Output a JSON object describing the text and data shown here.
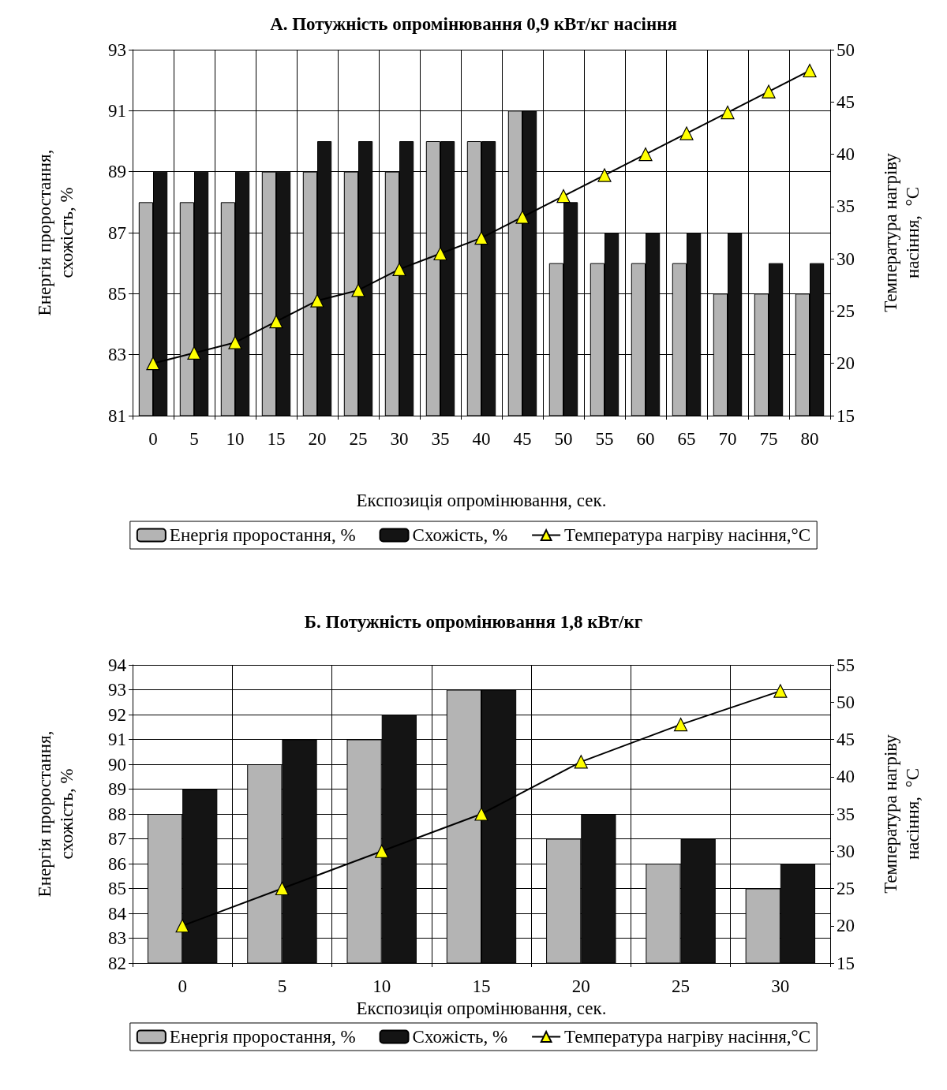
{
  "chart_data": [
    {
      "type": "bar",
      "title": "А. Потужність опромінювання 0,9 кВт/кг насіння",
      "xlabel": "Експозиція опромінювання, сек.",
      "ylabel": "Енергія проростання,\nсхожість, %",
      "y2label": "Температура нагріву\nнасіння,  °C",
      "categories": [
        "0",
        "5",
        "10",
        "15",
        "20",
        "25",
        "30",
        "35",
        "40",
        "45",
        "50",
        "55",
        "60",
        "65",
        "70",
        "75",
        "80"
      ],
      "series": [
        {
          "name": "Енергія проростання, %",
          "color": "#b4b4b4",
          "values": [
            88,
            88,
            88,
            89,
            89,
            89,
            89,
            90,
            90,
            91,
            86,
            86,
            86,
            86,
            85,
            85,
            85
          ]
        },
        {
          "name": "Схожість, %",
          "color": "#141414",
          "values": [
            89,
            89,
            89,
            89,
            90,
            90,
            90,
            90,
            90,
            91,
            88,
            87,
            87,
            87,
            87,
            86,
            86
          ]
        },
        {
          "name": "Температура нагріву насіння,°C",
          "type": "line",
          "axis": "y2",
          "color": "#000000",
          "marker": "triangle",
          "values": [
            20,
            21,
            22,
            24,
            26,
            27,
            29,
            30.5,
            32,
            34,
            36,
            38,
            40,
            42,
            44,
            46,
            48
          ]
        }
      ],
      "ylim": [
        81,
        93
      ],
      "yticks": [
        81,
        83,
        85,
        87,
        89,
        91,
        93
      ],
      "y2lim": [
        15,
        50
      ],
      "y2ticks": [
        15,
        20,
        25,
        30,
        35,
        40,
        45,
        50
      ],
      "grid": true,
      "legend": "bottom"
    },
    {
      "type": "bar",
      "title": "Б. Потужність опромінювання 1,8 кВт/кг",
      "xlabel": "Експозиція опромінювання, сек.",
      "ylabel": "Енергія проростання,\nсхожість, %",
      "y2label": "Температура нагріву\nнасіння,  °C",
      "categories": [
        "0",
        "5",
        "10",
        "15",
        "20",
        "25",
        "30"
      ],
      "series": [
        {
          "name": "Енергія проростання, %",
          "color": "#b4b4b4",
          "values": [
            88,
            90,
            91,
            93,
            87,
            86,
            85
          ]
        },
        {
          "name": "Схожість, %",
          "color": "#141414",
          "values": [
            89,
            91,
            92,
            93,
            88,
            87,
            86
          ]
        },
        {
          "name": "Температура нагріву насіння,°C",
          "type": "line",
          "axis": "y2",
          "color": "#000000",
          "marker": "triangle",
          "values": [
            20,
            25,
            30,
            35,
            42,
            47,
            51.5
          ]
        }
      ],
      "ylim": [
        82,
        94
      ],
      "yticks": [
        82,
        83,
        84,
        85,
        86,
        87,
        88,
        89,
        90,
        91,
        92,
        93,
        94
      ],
      "y2lim": [
        15,
        55
      ],
      "y2ticks": [
        15,
        20,
        25,
        30,
        35,
        40,
        45,
        50,
        55
      ],
      "grid": true,
      "legend": "bottom"
    }
  ]
}
